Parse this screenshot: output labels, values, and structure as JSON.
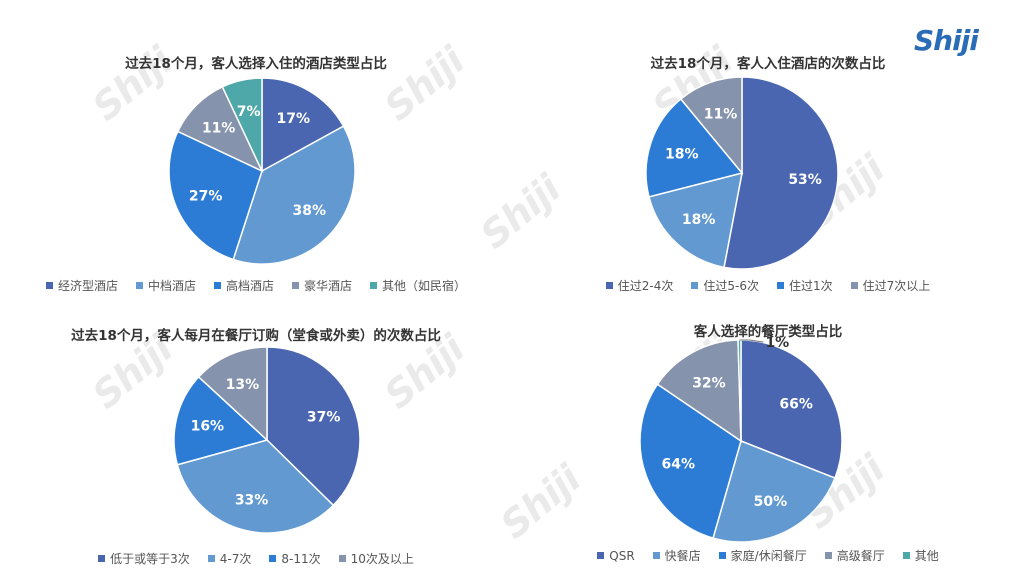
{
  "logo": "Shiji",
  "watermark": "Shiji",
  "palette": [
    "#4a66b1",
    "#6199d0",
    "#2c7cd6",
    "#8593ac",
    "#4ea7a9"
  ],
  "chart_data": [
    {
      "type": "pie",
      "title": "过去18个月，客人选择入住的酒店类型占比",
      "categories": [
        "经济型酒店",
        "中档酒店",
        "高档酒店",
        "豪华酒店",
        "其他（如民宿）"
      ],
      "values": [
        17,
        38,
        27,
        11,
        7
      ],
      "labels": [
        "17%",
        "38%",
        "27%",
        "11%",
        "7%"
      ]
    },
    {
      "type": "pie",
      "title": "过去18个月，客人入住酒店的次数占比",
      "categories": [
        "住过2-4次",
        "住过5-6次",
        "住过1次",
        "住过7次以上"
      ],
      "values": [
        53,
        18,
        18,
        11
      ],
      "labels": [
        "53%",
        "18%",
        "18%",
        "11%"
      ]
    },
    {
      "type": "pie",
      "title": "过去18个月，客人每月在餐厅订购（堂食或外卖）的次数占比",
      "categories": [
        "低于或等于3次",
        "4-7次",
        "8-11次",
        "10次及以上"
      ],
      "values": [
        37,
        33,
        16,
        13
      ],
      "labels": [
        "37%",
        "33%",
        "16%",
        "13%"
      ]
    },
    {
      "type": "pie",
      "title": "客人选择的餐厅类型占比",
      "categories": [
        "QSR",
        "快餐店",
        "家庭/休闲餐厅",
        "高级餐厅",
        "其他"
      ],
      "values": [
        66,
        50,
        64,
        32,
        1
      ],
      "labels": [
        "66%",
        "50%",
        "64%",
        "32%",
        "1%"
      ]
    }
  ]
}
